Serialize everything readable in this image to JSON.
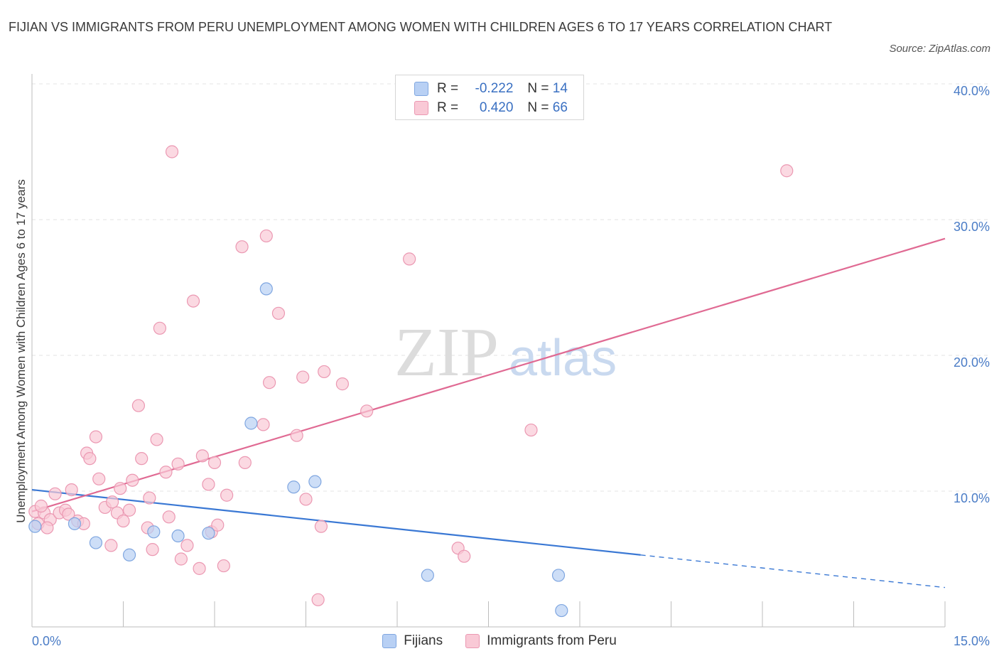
{
  "title": "FIJIAN VS IMMIGRANTS FROM PERU UNEMPLOYMENT AMONG WOMEN WITH CHILDREN AGES 6 TO 17 YEARS CORRELATION CHART",
  "source": "Source: ZipAtlas.com",
  "watermark": {
    "zip": "ZIP",
    "atlas": "atlas"
  },
  "legend_top": {
    "rows": [
      {
        "r_label": "R =",
        "r_value": "-0.222",
        "n_label": "N =",
        "n_value": "14"
      },
      {
        "r_label": "R =",
        "r_value": "0.420",
        "n_label": "N =",
        "n_value": "66"
      }
    ]
  },
  "legend_bottom": {
    "series1": "Fijians",
    "series2": "Immigrants from Peru"
  },
  "colors": {
    "fijians_fill": "#b8d0f4",
    "fijians_stroke": "#7fa6e0",
    "fijians_line": "#3a78d4",
    "peru_fill": "#f9c9d6",
    "peru_stroke": "#eb98b2",
    "peru_line": "#e06a93",
    "axis_tick_text": "#4a7cc6",
    "grid": "#e3e3e3"
  },
  "chart_data": {
    "type": "scatter",
    "xlabel": "",
    "ylabel": "Unemployment Among Women with Children Ages 6 to 17 years",
    "xlim": [
      0,
      15
    ],
    "ylim": [
      0,
      40
    ],
    "x_tick_labels": [
      {
        "value": 0,
        "label": "0.0%"
      },
      {
        "value": 15,
        "label": "15.0%"
      }
    ],
    "y_tick_labels": [
      {
        "value": 10,
        "label": "10.0%"
      },
      {
        "value": 20,
        "label": "20.0%"
      },
      {
        "value": 30,
        "label": "30.0%"
      },
      {
        "value": 40,
        "label": "40.0%"
      }
    ],
    "x_minor_ticks": [
      1.5,
      3.0,
      4.5,
      6.0,
      7.5,
      9.0,
      10.5,
      12.0,
      13.5,
      15.0
    ],
    "grid": true,
    "series": [
      {
        "name": "Fijians",
        "points": [
          [
            0.05,
            7.4
          ],
          [
            0.7,
            7.6
          ],
          [
            1.05,
            6.2
          ],
          [
            1.6,
            5.3
          ],
          [
            2.0,
            7.0
          ],
          [
            2.4,
            6.7
          ],
          [
            2.9,
            6.9
          ],
          [
            3.6,
            15.0
          ],
          [
            3.85,
            24.9
          ],
          [
            4.3,
            10.3
          ],
          [
            4.65,
            10.7
          ],
          [
            6.5,
            3.8
          ],
          [
            8.65,
            3.8
          ],
          [
            8.7,
            1.2
          ]
        ],
        "trend": {
          "x0": 0,
          "y0": 10.1,
          "x_solid_end": 10.0,
          "x1": 15.0,
          "y1": 2.9
        }
      },
      {
        "name": "Immigrants from Peru",
        "points": [
          [
            0.05,
            8.5
          ],
          [
            0.1,
            7.6
          ],
          [
            0.2,
            8.4
          ],
          [
            0.3,
            7.9
          ],
          [
            0.38,
            9.8
          ],
          [
            0.45,
            8.4
          ],
          [
            0.55,
            8.6
          ],
          [
            0.65,
            10.1
          ],
          [
            0.75,
            7.8
          ],
          [
            0.85,
            7.6
          ],
          [
            0.9,
            12.8
          ],
          [
            0.95,
            12.4
          ],
          [
            1.05,
            14.0
          ],
          [
            1.1,
            10.9
          ],
          [
            1.2,
            8.8
          ],
          [
            1.3,
            6.0
          ],
          [
            1.32,
            9.2
          ],
          [
            1.4,
            8.4
          ],
          [
            1.45,
            10.2
          ],
          [
            1.5,
            7.8
          ],
          [
            1.6,
            8.6
          ],
          [
            1.65,
            10.8
          ],
          [
            1.75,
            16.3
          ],
          [
            1.8,
            12.4
          ],
          [
            1.9,
            7.3
          ],
          [
            1.93,
            9.5
          ],
          [
            1.98,
            5.7
          ],
          [
            2.05,
            13.8
          ],
          [
            2.1,
            22.0
          ],
          [
            2.2,
            11.4
          ],
          [
            2.25,
            8.1
          ],
          [
            2.3,
            35.0
          ],
          [
            2.4,
            12.0
          ],
          [
            2.45,
            5.0
          ],
          [
            2.55,
            6.0
          ],
          [
            2.65,
            24.0
          ],
          [
            2.75,
            4.3
          ],
          [
            2.8,
            12.6
          ],
          [
            2.9,
            10.5
          ],
          [
            2.95,
            7.0
          ],
          [
            3.0,
            12.1
          ],
          [
            3.05,
            7.5
          ],
          [
            3.15,
            4.5
          ],
          [
            3.2,
            9.7
          ],
          [
            3.45,
            28.0
          ],
          [
            3.5,
            12.1
          ],
          [
            3.8,
            14.9
          ],
          [
            3.85,
            28.8
          ],
          [
            3.9,
            18.0
          ],
          [
            4.05,
            23.1
          ],
          [
            4.35,
            14.1
          ],
          [
            4.45,
            18.4
          ],
          [
            4.5,
            9.4
          ],
          [
            4.7,
            2.0
          ],
          [
            4.75,
            7.4
          ],
          [
            4.8,
            18.8
          ],
          [
            5.1,
            17.9
          ],
          [
            5.5,
            15.9
          ],
          [
            6.2,
            27.1
          ],
          [
            7.0,
            5.8
          ],
          [
            7.1,
            5.2
          ],
          [
            8.2,
            14.5
          ],
          [
            12.4,
            33.6
          ],
          [
            0.15,
            8.9
          ],
          [
            0.25,
            7.3
          ],
          [
            0.6,
            8.3
          ]
        ],
        "trend": {
          "x0": 0,
          "y0": 8.5,
          "x1": 15.0,
          "y1": 28.6
        }
      }
    ]
  }
}
